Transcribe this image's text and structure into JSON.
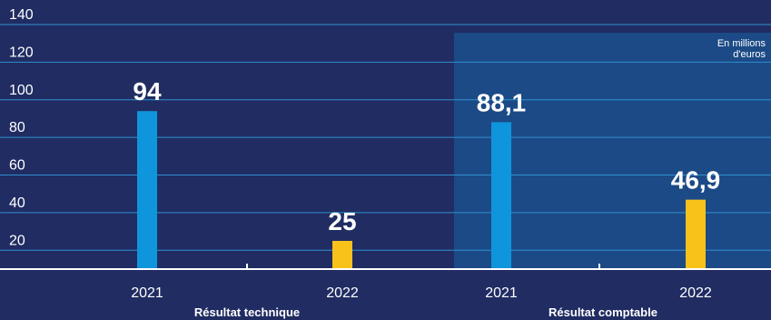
{
  "colors": {
    "background": "#202c62",
    "panel_right": "#1c4a86",
    "grid": "#2f8fd0",
    "axis": "#ffffff",
    "text": "#ffffff",
    "series_2021": "#0f95dc",
    "series_2022": "#f8c21a"
  },
  "unit_note_line1": "En millions",
  "unit_note_line2": "d'euros",
  "chart_data": {
    "type": "bar",
    "ylim": [
      10,
      140
    ],
    "yticks": [
      20,
      40,
      60,
      80,
      100,
      120,
      140
    ],
    "ytick_labels": [
      "20",
      "40",
      "60",
      "80",
      "100",
      "120",
      "140"
    ],
    "groups": [
      {
        "label": "Résultat technique",
        "bars": [
          {
            "category": "2021",
            "value": 94,
            "value_label": "94",
            "series": "2021"
          },
          {
            "category": "2022",
            "value": 25,
            "value_label": "25",
            "series": "2022"
          }
        ]
      },
      {
        "label": "Résultat comptable",
        "bars": [
          {
            "category": "2021",
            "value": 88.1,
            "value_label": "88,1",
            "series": "2021"
          },
          {
            "category": "2022",
            "value": 46.9,
            "value_label": "46,9",
            "series": "2022"
          }
        ]
      }
    ],
    "grid": true
  }
}
